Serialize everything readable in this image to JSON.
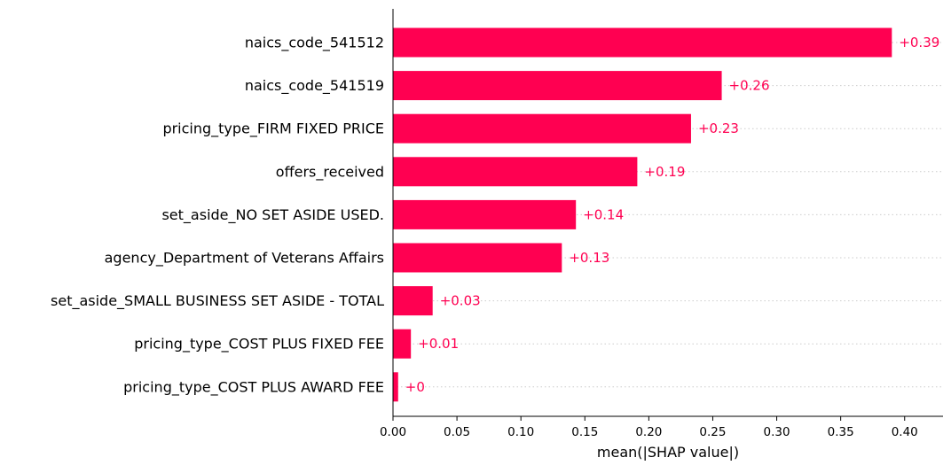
{
  "chart_data": {
    "type": "bar",
    "orientation": "horizontal",
    "categories": [
      "naics_code_541512",
      "naics_code_541519",
      "pricing_type_FIRM FIXED PRICE",
      "offers_received",
      "set_aside_NO SET ASIDE USED.",
      "agency_Department of Veterans Affairs",
      "set_aside_SMALL BUSINESS SET ASIDE - TOTAL",
      "pricing_type_COST PLUS FIXED FEE",
      "pricing_type_COST PLUS AWARD FEE"
    ],
    "values": [
      0.39,
      0.257,
      0.233,
      0.191,
      0.143,
      0.132,
      0.031,
      0.014,
      0.004
    ],
    "value_labels": [
      "+0.39",
      "+0.26",
      "+0.23",
      "+0.19",
      "+0.14",
      "+0.13",
      "+0.03",
      "+0.01",
      "+0"
    ],
    "xlabel": "mean(|SHAP value|)",
    "ylabel": "",
    "xlim": [
      0,
      0.43
    ],
    "xticks": [
      "0.00",
      "0.05",
      "0.10",
      "0.15",
      "0.20",
      "0.25",
      "0.30",
      "0.35",
      "0.40"
    ],
    "grid": "dotted horizontal guide lines per row",
    "legend": "none"
  },
  "colors": {
    "bar": "#ff0051",
    "value_label": "#ff0051",
    "axis": "#000000",
    "guide": "#cccccc"
  }
}
